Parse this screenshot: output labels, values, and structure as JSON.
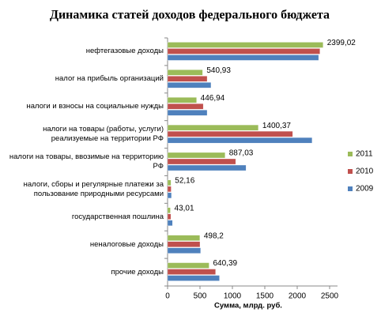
{
  "chart_data": {
    "type": "bar",
    "orientation": "horizontal",
    "title": "Динамика статей доходов федерального бюджета",
    "x_label": "Сумма, млрд. руб.",
    "categories": [
      "нефтегазовые доходы",
      "налог на прибыль организаций",
      "налоги и взносы на социальные нужды",
      "налоги на товары (работы, услуги) реализуемые на территории РФ",
      "налоги на товары, ввозимые на территорию РФ",
      "налоги, сборы и регулярные платежи за пользование природными ресурсами",
      "государственная пошлина",
      "неналоговые доходы",
      "прочие доходы"
    ],
    "series": [
      {
        "name": "2011",
        "color": "#9bbb59",
        "values": [
          2399.02,
          540.93,
          446.94,
          1400.37,
          887.03,
          52.16,
          43.01,
          498.2,
          640.39
        ],
        "value_labels": [
          "2399,02",
          "540,93",
          "446,94",
          "1400,37",
          "887,03",
          "52,16",
          "43,01",
          "498,2",
          "640,39"
        ]
      },
      {
        "name": "2010",
        "color": "#c0504d",
        "values": [
          2350,
          610,
          550,
          1930,
          1050,
          55,
          50,
          500,
          740
        ]
      },
      {
        "name": "2009",
        "color": "#4f81bd",
        "values": [
          2330,
          670,
          610,
          2230,
          1210,
          60,
          75,
          510,
          800
        ]
      }
    ],
    "xlim": [
      0,
      2500
    ],
    "xticks": [
      0,
      500,
      1000,
      1500,
      2000,
      2500
    ],
    "grid": false,
    "legend": "right"
  }
}
